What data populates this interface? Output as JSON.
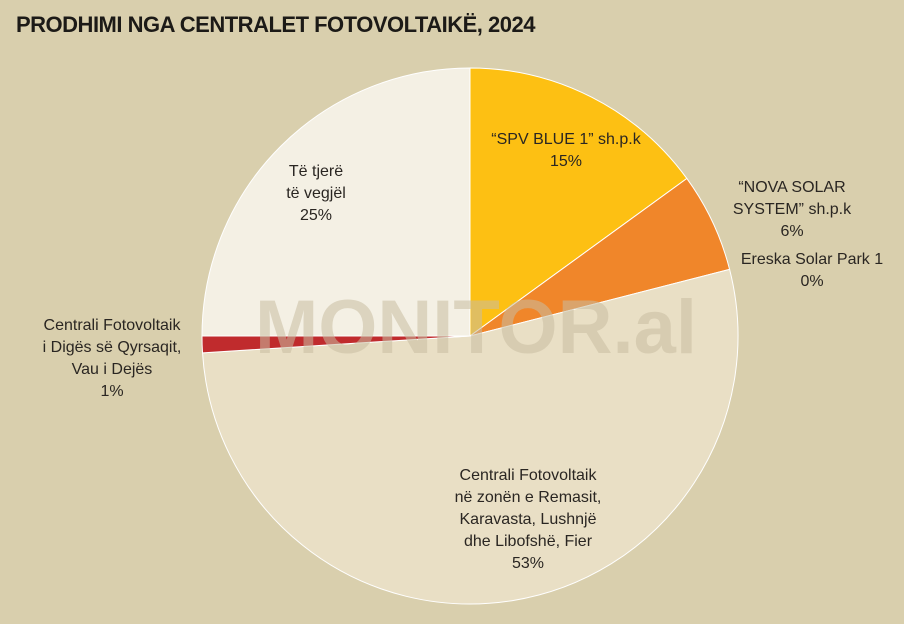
{
  "title": "PRODHIMI NGA CENTRALET FOTOVOLTAIKË, 2024",
  "watermark": "MONITOR.al",
  "chart_data": {
    "type": "pie",
    "title": "PRODHIMI NGA CENTRALET FOTOVOLTAIKË, 2024",
    "start_angle": "12 o'clock",
    "direction": "clockwise",
    "slices": [
      {
        "label_lines": [
          "“SPV BLUE 1” sh.p.k"
        ],
        "value": 15,
        "value_label": "15%",
        "color": "#fdc013"
      },
      {
        "label_lines": [
          "“NOVA SOLAR",
          "SYSTEM” sh.p.k"
        ],
        "value": 6,
        "value_label": "6%",
        "color": "#f0862a"
      },
      {
        "label_lines": [
          "Ereska Solar Park 1"
        ],
        "value": 0,
        "value_label": "0%",
        "color": "#f0862a"
      },
      {
        "label_lines": [
          "Centrali Fotovoltaik",
          "në zonën e Remasit,",
          "Karavasta, Lushnjë",
          "dhe Libofshë, Fier"
        ],
        "value": 53,
        "value_label": "53%",
        "color": "#e9dfc5"
      },
      {
        "label_lines": [
          "Centrali Fotovoltaik",
          "i Digës së Qyrsaqit,",
          "Vau i Dejës"
        ],
        "value": 1,
        "value_label": "1%",
        "color": "#c02b2d"
      },
      {
        "label_lines": [
          "Të tjerë",
          "të vegjël"
        ],
        "value": 25,
        "value_label": "25%",
        "color": "#f4f0e4"
      }
    ]
  }
}
